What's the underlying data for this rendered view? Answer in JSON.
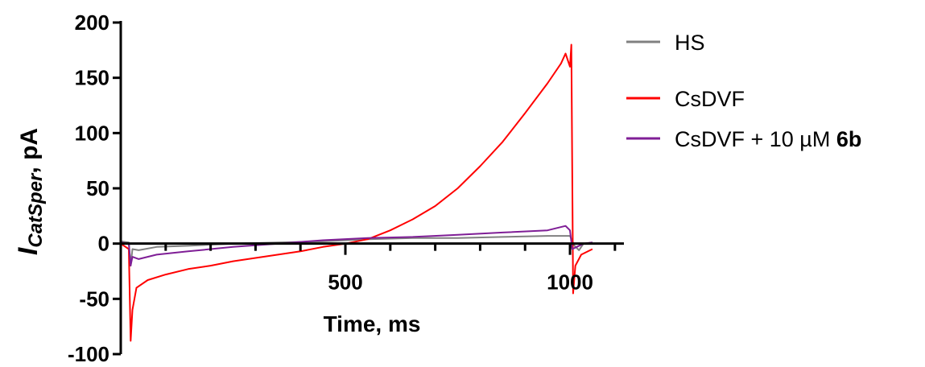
{
  "chart_data": {
    "type": "line",
    "xlabel": "Time, ms",
    "ylabel_main": "I",
    "ylabel_sub": "CatSper",
    "ylabel_unit": ", pA",
    "xlim": [
      0,
      1120
    ],
    "ylim": [
      -100,
      200
    ],
    "x_ticks_major": [
      0,
      500,
      1000
    ],
    "x_tick_labels": [
      "500",
      "1000"
    ],
    "x_ticks_minor": [
      100,
      200,
      300,
      400,
      600,
      700,
      800,
      900,
      1100
    ],
    "y_ticks": [
      -100,
      -50,
      0,
      50,
      100,
      150,
      200
    ],
    "y_tick_labels": [
      "-100",
      "-50",
      "0",
      "50",
      "100",
      "150",
      "200"
    ],
    "grid": false,
    "legend_position": "top-right",
    "series": [
      {
        "name": "HS",
        "color": "#808080",
        "points": [
          [
            0,
            2
          ],
          [
            18,
            1
          ],
          [
            22,
            -20
          ],
          [
            26,
            -5
          ],
          [
            40,
            -6
          ],
          [
            80,
            -3
          ],
          [
            150,
            -2
          ],
          [
            250,
            0
          ],
          [
            350,
            1
          ],
          [
            450,
            2
          ],
          [
            550,
            4
          ],
          [
            650,
            5
          ],
          [
            750,
            5
          ],
          [
            850,
            6
          ],
          [
            950,
            7
          ],
          [
            1000,
            7
          ],
          [
            1010,
            -2
          ],
          [
            1020,
            -6
          ],
          [
            1030,
            0
          ],
          [
            1050,
            1
          ]
        ]
      },
      {
        "name": "CsDVF",
        "color": "#ff0000",
        "points": [
          [
            0,
            0
          ],
          [
            18,
            -5
          ],
          [
            22,
            -88
          ],
          [
            26,
            -60
          ],
          [
            35,
            -40
          ],
          [
            60,
            -33
          ],
          [
            100,
            -28
          ],
          [
            150,
            -23
          ],
          [
            200,
            -20
          ],
          [
            250,
            -16
          ],
          [
            300,
            -13
          ],
          [
            350,
            -10
          ],
          [
            400,
            -7
          ],
          [
            450,
            -3
          ],
          [
            500,
            0
          ],
          [
            550,
            4
          ],
          [
            600,
            12
          ],
          [
            650,
            22
          ],
          [
            700,
            34
          ],
          [
            750,
            50
          ],
          [
            800,
            70
          ],
          [
            850,
            92
          ],
          [
            900,
            118
          ],
          [
            950,
            145
          ],
          [
            980,
            163
          ],
          [
            990,
            172
          ],
          [
            1000,
            160
          ],
          [
            1003,
            180
          ],
          [
            1007,
            -45
          ],
          [
            1012,
            -20
          ],
          [
            1025,
            -10
          ],
          [
            1050,
            -5
          ]
        ]
      },
      {
        "name": "CsDVF + 10 µM ",
        "name_bold": "6b",
        "color": "#7f1e96",
        "points": [
          [
            0,
            1
          ],
          [
            18,
            0
          ],
          [
            22,
            -20
          ],
          [
            26,
            -12
          ],
          [
            40,
            -14
          ],
          [
            80,
            -10
          ],
          [
            150,
            -7
          ],
          [
            250,
            -3
          ],
          [
            350,
            0
          ],
          [
            450,
            3
          ],
          [
            550,
            5
          ],
          [
            650,
            6
          ],
          [
            750,
            8
          ],
          [
            850,
            10
          ],
          [
            950,
            12
          ],
          [
            990,
            16
          ],
          [
            1000,
            12
          ],
          [
            1005,
            -5
          ],
          [
            1015,
            -3
          ],
          [
            1030,
            0
          ],
          [
            1050,
            1
          ]
        ]
      }
    ]
  }
}
